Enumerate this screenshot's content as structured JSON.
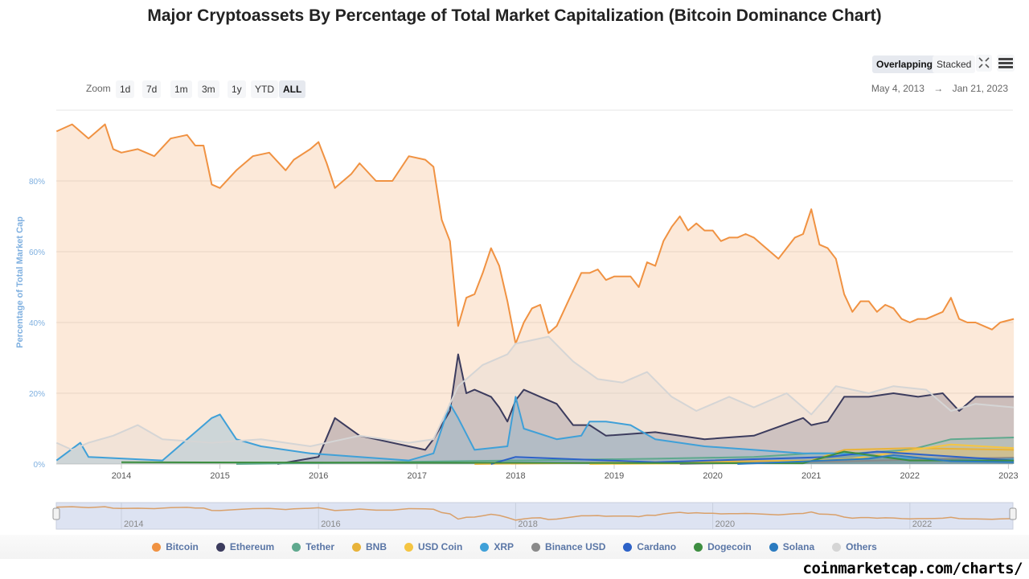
{
  "title": "Major Cryptoassets By Percentage of Total Market Capitalization (Bitcoin Dominance Chart)",
  "toolbar": {
    "overlapping": "Overlapping",
    "stacked": "Stacked",
    "fullscreen_icon": "fullscreen-icon",
    "menu_icon": "hamburger-menu-icon"
  },
  "zoom": {
    "label": "Zoom",
    "options": [
      "1d",
      "7d",
      "1m",
      "3m",
      "1y",
      "YTD",
      "ALL"
    ],
    "selected": "ALL"
  },
  "range": {
    "from": "May 4, 2013",
    "arrow": "→",
    "to": "Jan 21, 2023"
  },
  "watermark": "coinmarketcap.com/charts/",
  "chart_data": {
    "type": "area",
    "title": "Major Cryptoassets By Percentage of Total Market Capitalization (Bitcoin Dominance Chart)",
    "ylabel": "Percentage of Total Market Cap",
    "xlabel": "",
    "ylim": [
      0,
      100
    ],
    "yticks": [
      "0%",
      "20%",
      "40%",
      "60%",
      "80%"
    ],
    "xticks": [
      "2014",
      "2015",
      "2016",
      "2017",
      "2018",
      "2019",
      "2020",
      "2021",
      "2022",
      "2023"
    ],
    "navigator_ticks": [
      "2014",
      "2016",
      "2018",
      "2020",
      "2022"
    ],
    "grid": true,
    "legend_position": "bottom",
    "series": [
      {
        "name": "Bitcoin",
        "color": "#f09242",
        "points": [
          [
            "2013-05-04",
            94
          ],
          [
            "2013-07",
            96
          ],
          [
            "2013-09",
            92
          ],
          [
            "2013-11",
            96
          ],
          [
            "2013-12",
            89
          ],
          [
            "2014-01",
            88
          ],
          [
            "2014-03",
            89
          ],
          [
            "2014-05",
            87
          ],
          [
            "2014-07",
            92
          ],
          [
            "2014-09",
            93
          ],
          [
            "2014-10",
            90
          ],
          [
            "2014-11",
            90
          ],
          [
            "2014-12",
            79
          ],
          [
            "2015-01",
            78
          ],
          [
            "2015-03",
            83
          ],
          [
            "2015-05",
            87
          ],
          [
            "2015-07",
            88
          ],
          [
            "2015-09",
            83
          ],
          [
            "2015-10",
            86
          ],
          [
            "2015-12",
            89
          ],
          [
            "2016-01",
            91
          ],
          [
            "2016-02",
            85
          ],
          [
            "2016-03",
            78
          ],
          [
            "2016-05",
            82
          ],
          [
            "2016-06",
            85
          ],
          [
            "2016-08",
            80
          ],
          [
            "2016-10",
            80
          ],
          [
            "2016-12",
            87
          ],
          [
            "2017-02",
            86
          ],
          [
            "2017-03",
            84
          ],
          [
            "2017-04",
            69
          ],
          [
            "2017-05",
            63
          ],
          [
            "2017-06",
            39
          ],
          [
            "2017-07",
            47
          ],
          [
            "2017-08",
            48
          ],
          [
            "2017-09",
            54
          ],
          [
            "2017-10",
            61
          ],
          [
            "2017-11",
            56
          ],
          [
            "2017-12",
            46
          ],
          [
            "2018-01",
            34
          ],
          [
            "2018-02",
            40
          ],
          [
            "2018-03",
            44
          ],
          [
            "2018-04",
            45
          ],
          [
            "2018-05",
            37
          ],
          [
            "2018-06",
            39
          ],
          [
            "2018-07",
            44
          ],
          [
            "2018-08",
            49
          ],
          [
            "2018-09",
            54
          ],
          [
            "2018-10",
            54
          ],
          [
            "2018-11",
            55
          ],
          [
            "2018-12",
            52
          ],
          [
            "2019-01",
            53
          ],
          [
            "2019-02",
            53
          ],
          [
            "2019-03",
            53
          ],
          [
            "2019-04",
            50
          ],
          [
            "2019-05",
            57
          ],
          [
            "2019-06",
            56
          ],
          [
            "2019-07",
            63
          ],
          [
            "2019-08",
            67
          ],
          [
            "2019-09",
            70
          ],
          [
            "2019-10",
            66
          ],
          [
            "2019-11",
            68
          ],
          [
            "2019-12",
            66
          ],
          [
            "2020-01",
            66
          ],
          [
            "2020-02",
            63
          ],
          [
            "2020-03",
            64
          ],
          [
            "2020-04",
            64
          ],
          [
            "2020-05",
            65
          ],
          [
            "2020-06",
            64
          ],
          [
            "2020-07",
            62
          ],
          [
            "2020-08",
            60
          ],
          [
            "2020-09",
            58
          ],
          [
            "2020-10",
            61
          ],
          [
            "2020-11",
            64
          ],
          [
            "2020-12",
            65
          ],
          [
            "2021-01",
            72
          ],
          [
            "2021-02",
            62
          ],
          [
            "2021-03",
            61
          ],
          [
            "2021-04",
            58
          ],
          [
            "2021-05",
            48
          ],
          [
            "2021-06",
            43
          ],
          [
            "2021-07",
            46
          ],
          [
            "2021-08",
            46
          ],
          [
            "2021-09",
            43
          ],
          [
            "2021-10",
            45
          ],
          [
            "2021-11",
            44
          ],
          [
            "2021-12",
            41
          ],
          [
            "2022-01",
            40
          ],
          [
            "2022-02",
            41
          ],
          [
            "2022-03",
            41
          ],
          [
            "2022-04",
            42
          ],
          [
            "2022-05",
            43
          ],
          [
            "2022-06",
            47
          ],
          [
            "2022-07",
            41
          ],
          [
            "2022-08",
            40
          ],
          [
            "2022-09",
            40
          ],
          [
            "2022-10",
            39
          ],
          [
            "2022-11",
            38
          ],
          [
            "2022-12",
            40
          ],
          [
            "2023-01-21",
            41
          ]
        ]
      },
      {
        "name": "Ethereum",
        "color": "#3c3c5e",
        "points": [
          [
            "2015-08",
            0
          ],
          [
            "2016-01",
            2
          ],
          [
            "2016-03",
            13
          ],
          [
            "2016-06",
            8
          ],
          [
            "2016-08",
            7
          ],
          [
            "2016-12",
            5
          ],
          [
            "2017-02",
            4
          ],
          [
            "2017-03",
            7
          ],
          [
            "2017-05",
            15
          ],
          [
            "2017-06",
            31
          ],
          [
            "2017-07",
            20
          ],
          [
            "2017-08",
            21
          ],
          [
            "2017-10",
            19
          ],
          [
            "2017-11",
            16
          ],
          [
            "2017-12",
            12
          ],
          [
            "2018-01",
            18
          ],
          [
            "2018-02",
            21
          ],
          [
            "2018-04",
            19
          ],
          [
            "2018-06",
            17
          ],
          [
            "2018-08",
            11
          ],
          [
            "2018-10",
            11
          ],
          [
            "2018-12",
            8
          ],
          [
            "2019-06",
            9
          ],
          [
            "2019-12",
            7
          ],
          [
            "2020-06",
            8
          ],
          [
            "2020-12",
            13
          ],
          [
            "2021-01",
            11
          ],
          [
            "2021-03",
            12
          ],
          [
            "2021-05",
            19
          ],
          [
            "2021-08",
            19
          ],
          [
            "2021-11",
            20
          ],
          [
            "2022-02",
            19
          ],
          [
            "2022-05",
            20
          ],
          [
            "2022-07",
            15
          ],
          [
            "2022-09",
            19
          ],
          [
            "2023-01-21",
            19
          ]
        ]
      },
      {
        "name": "Tether",
        "color": "#5fa98e",
        "points": [
          [
            "2015-03",
            0
          ],
          [
            "2018-01",
            1
          ],
          [
            "2019-06",
            1.5
          ],
          [
            "2020-06",
            2
          ],
          [
            "2021-01",
            3
          ],
          [
            "2021-06",
            3
          ],
          [
            "2022-01",
            4
          ],
          [
            "2022-06",
            7
          ],
          [
            "2023-01-21",
            7.5
          ]
        ]
      },
      {
        "name": "BNB",
        "color": "#e8b33a",
        "points": [
          [
            "2017-08",
            0
          ],
          [
            "2019-06",
            0.5
          ],
          [
            "2021-01",
            1
          ],
          [
            "2021-05",
            4
          ],
          [
            "2022-01",
            4.5
          ],
          [
            "2023-01-21",
            4
          ]
        ]
      },
      {
        "name": "USD Coin",
        "color": "#f5c542",
        "points": [
          [
            "2018-10",
            0
          ],
          [
            "2020-06",
            0.3
          ],
          [
            "2021-06",
            1.5
          ],
          [
            "2022-06",
            5.5
          ],
          [
            "2023-01-21",
            4.5
          ]
        ]
      },
      {
        "name": "XRP",
        "color": "#3fa0d8",
        "points": [
          [
            "2013-05-04",
            1
          ],
          [
            "2013-08",
            6
          ],
          [
            "2013-09",
            2
          ],
          [
            "2014-06",
            1
          ],
          [
            "2014-12",
            13
          ],
          [
            "2015-01",
            14
          ],
          [
            "2015-03",
            7
          ],
          [
            "2015-06",
            5
          ],
          [
            "2015-12",
            3
          ],
          [
            "2016-06",
            2
          ],
          [
            "2016-12",
            1
          ],
          [
            "2017-03",
            3
          ],
          [
            "2017-05",
            17
          ],
          [
            "2017-06",
            13
          ],
          [
            "2017-08",
            4
          ],
          [
            "2017-12",
            5
          ],
          [
            "2018-01",
            19
          ],
          [
            "2018-02",
            10
          ],
          [
            "2018-06",
            7
          ],
          [
            "2018-09",
            8
          ],
          [
            "2018-10",
            12
          ],
          [
            "2018-12",
            12
          ],
          [
            "2019-03",
            11
          ],
          [
            "2019-06",
            7
          ],
          [
            "2019-12",
            5
          ],
          [
            "2020-12",
            3
          ],
          [
            "2021-04",
            3
          ],
          [
            "2022-01",
            1.5
          ],
          [
            "2023-01-21",
            1.5
          ]
        ]
      },
      {
        "name": "Binance USD",
        "color": "#8a8a8a",
        "points": [
          [
            "2019-09",
            0
          ],
          [
            "2021-06",
            0.8
          ],
          [
            "2022-06",
            1.5
          ],
          [
            "2023-01-21",
            1.8
          ]
        ]
      },
      {
        "name": "Cardano",
        "color": "#2d62c8",
        "points": [
          [
            "2017-10",
            0
          ],
          [
            "2018-01",
            2
          ],
          [
            "2019-06",
            0.5
          ],
          [
            "2021-03",
            2
          ],
          [
            "2021-09",
            3.5
          ],
          [
            "2023-01-21",
            1
          ]
        ]
      },
      {
        "name": "Dogecoin",
        "color": "#3e8e41",
        "points": [
          [
            "2014-01",
            0.5
          ],
          [
            "2020-12",
            0.2
          ],
          [
            "2021-05",
            3.5
          ],
          [
            "2022-01",
            1
          ],
          [
            "2023-01-21",
            1
          ]
        ]
      },
      {
        "name": "Solana",
        "color": "#2b7bc0",
        "points": [
          [
            "2020-04",
            0
          ],
          [
            "2021-08",
            1.5
          ],
          [
            "2021-11",
            2.5
          ],
          [
            "2022-06",
            0.8
          ],
          [
            "2023-01-21",
            0.5
          ]
        ]
      },
      {
        "name": "Others",
        "color": "#d5d5d5",
        "points": [
          [
            "2013-05-04",
            6
          ],
          [
            "2013-07",
            4
          ],
          [
            "2013-09",
            6
          ],
          [
            "2013-12",
            8
          ],
          [
            "2014-03",
            11
          ],
          [
            "2014-06",
            7
          ],
          [
            "2014-12",
            6
          ],
          [
            "2015-06",
            7
          ],
          [
            "2015-12",
            5
          ],
          [
            "2016-06",
            8
          ],
          [
            "2016-12",
            6
          ],
          [
            "2017-03",
            7
          ],
          [
            "2017-05",
            17
          ],
          [
            "2017-06",
            22
          ],
          [
            "2017-09",
            28
          ],
          [
            "2017-12",
            31
          ],
          [
            "2018-01",
            34
          ],
          [
            "2018-05",
            36
          ],
          [
            "2018-08",
            29
          ],
          [
            "2018-11",
            24
          ],
          [
            "2019-02",
            23
          ],
          [
            "2019-05",
            26
          ],
          [
            "2019-08",
            19
          ],
          [
            "2019-11",
            15
          ],
          [
            "2020-03",
            19
          ],
          [
            "2020-06",
            16
          ],
          [
            "2020-10",
            20
          ],
          [
            "2021-01",
            14
          ],
          [
            "2021-04",
            22
          ],
          [
            "2021-08",
            20
          ],
          [
            "2021-11",
            22
          ],
          [
            "2022-03",
            21
          ],
          [
            "2022-06",
            15
          ],
          [
            "2022-09",
            17
          ],
          [
            "2023-01-21",
            16
          ]
        ]
      }
    ]
  }
}
